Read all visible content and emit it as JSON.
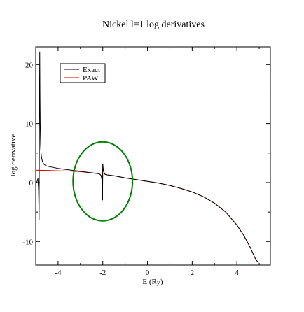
{
  "chart_data": {
    "type": "line",
    "title": "Nickel l=1 log derivatives",
    "xlabel": "E (Ry)",
    "ylabel": "log derivative",
    "xlim": [
      -5.0,
      5.5
    ],
    "ylim": [
      -14.0,
      23.0
    ],
    "x_ticks": [
      -4,
      -2,
      0,
      2,
      4
    ],
    "x_tick_labels": [
      "-4",
      "-2",
      "0",
      "2",
      "4"
    ],
    "y_ticks": [
      -10,
      0,
      10,
      20
    ],
    "y_tick_labels": [
      "-10",
      "0",
      "10",
      "20"
    ],
    "grid": false,
    "legend": {
      "position": "top-left"
    },
    "series": [
      {
        "name": "Exact",
        "color": "#000000",
        "x": [
          -5.0,
          -4.95,
          -4.9,
          -4.87,
          -4.85,
          -4.83,
          -4.82,
          -4.81,
          -4.8,
          -4.79,
          -4.78,
          -4.77,
          -4.76,
          -4.75,
          -4.74,
          -4.72,
          -4.7,
          -4.65,
          -4.6,
          -4.5,
          -4.4,
          -4.2,
          -4.0,
          -3.5,
          -3.0,
          -2.5,
          -2.2,
          -2.12,
          -2.08,
          -2.05,
          -2.03,
          -2.02,
          -2.01,
          -2.0,
          -1.99,
          -1.98,
          -1.96,
          -1.93,
          -1.9,
          -1.8,
          -1.5,
          -1.0,
          -0.5,
          0.0,
          0.5,
          1.0,
          1.5,
          2.0,
          2.5,
          3.0,
          3.5,
          4.0,
          4.3,
          4.6,
          4.8,
          4.9,
          4.97
        ],
        "y": [
          -0.2,
          0.1,
          0.7,
          -1.5,
          -6.3,
          15.0,
          22.2,
          14.5,
          10.2,
          8.0,
          6.5,
          5.6,
          5.0,
          4.6,
          4.3,
          3.9,
          3.6,
          3.2,
          3.0,
          2.8,
          2.7,
          2.55,
          2.4,
          2.15,
          1.9,
          1.65,
          1.5,
          1.4,
          1.2,
          0.8,
          0.2,
          -1.0,
          -3.0,
          3.2,
          2.7,
          2.3,
          1.9,
          1.6,
          1.4,
          1.3,
          1.15,
          0.8,
          0.5,
          0.2,
          -0.1,
          -0.5,
          -1.0,
          -1.6,
          -2.4,
          -3.5,
          -5.0,
          -7.2,
          -8.9,
          -11.0,
          -12.7,
          -13.3,
          -13.6
        ]
      },
      {
        "name": "PAW",
        "color": "#cc0000",
        "x": [
          -5.0,
          -4.5,
          -4.0,
          -3.5,
          -3.0,
          -2.5,
          -2.2,
          -2.12,
          -2.08,
          -2.05,
          -2.03,
          -2.02,
          -2.01,
          -2.0,
          -1.99,
          -1.98,
          -1.96,
          -1.93,
          -1.9,
          -1.8,
          -1.5,
          -1.0,
          -0.5,
          0.0,
          0.5,
          1.0,
          1.5,
          2.0,
          2.5,
          3.0,
          3.5,
          4.0,
          4.3,
          4.6,
          4.8,
          4.9,
          4.97
        ],
        "y": [
          2.1,
          2.05,
          2.0,
          1.95,
          1.85,
          1.65,
          1.5,
          1.4,
          1.2,
          0.8,
          0.2,
          -1.0,
          -3.0,
          3.2,
          2.7,
          2.3,
          1.9,
          1.6,
          1.4,
          1.3,
          1.15,
          0.8,
          0.5,
          0.2,
          -0.1,
          -0.5,
          -1.0,
          -1.6,
          -2.4,
          -3.5,
          -5.0,
          -7.2,
          -8.9,
          -11.0,
          -12.7,
          -13.3,
          -13.6
        ]
      }
    ],
    "annotations": [
      {
        "type": "ellipse",
        "color": "#008000",
        "cx": -2.0,
        "cy": 0.2,
        "rx": 1.33,
        "ry": 6.7
      }
    ]
  }
}
